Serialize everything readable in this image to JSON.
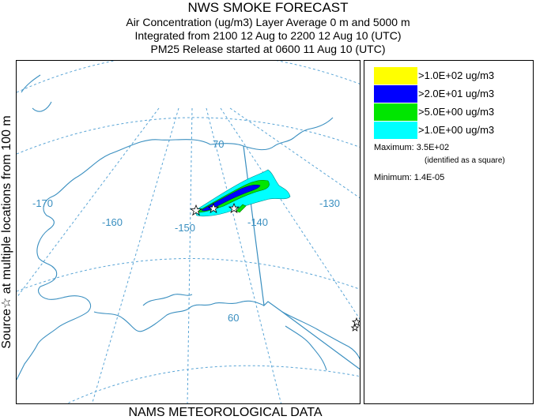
{
  "header": {
    "title": "NWS SMOKE FORECAST",
    "line1": "Air Concentration (ug/m3) Layer Average    0 m and  5000 m",
    "line2": "Integrated from 2100 12 Aug to 2200 12 Aug 10 (UTC)",
    "line3": "PM25 Release started at 0600 11 Aug 10 (UTC)"
  },
  "side_label": "Source☆  at multiple locations    from   100 m",
  "footer": "NAMS METEOROLOGICAL DATA",
  "map": {
    "longitude_labels": [
      "-170",
      "-160",
      "-150",
      "-140",
      "-130"
    ],
    "latitude_labels": [
      "70",
      "60"
    ],
    "colors": {
      "coast": "#3a8fc0",
      "grid": "#5aa5d6"
    }
  },
  "legend": {
    "entries": [
      {
        "label": ">1.0E+02 ug/m3",
        "color": "#ffff00"
      },
      {
        "label": ">2.0E+01 ug/m3",
        "color": "#0000ff"
      },
      {
        "label": ">5.0E+00 ug/m3",
        "color": "#00e600"
      },
      {
        "label": ">1.0E+00 ug/m3",
        "color": "#00ffff"
      }
    ],
    "maximum": "Maximum: 3.5E+02",
    "maximum_note": "(identified as a square)",
    "minimum": "Minimum: 1.4E-05"
  }
}
